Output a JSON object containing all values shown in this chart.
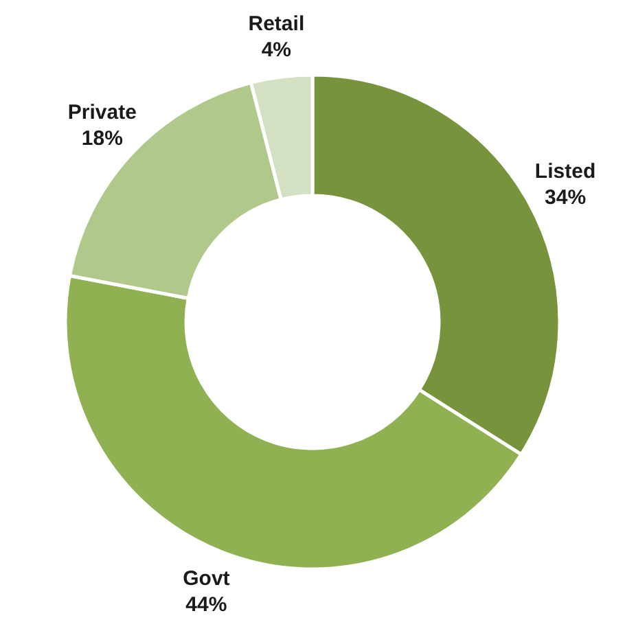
{
  "chart_data": {
    "type": "donut",
    "categories": [
      "Listed",
      "Govt",
      "Private",
      "Retail"
    ],
    "values": [
      34,
      44,
      18,
      4
    ],
    "value_labels": [
      "34%",
      "44%",
      "18%",
      "4%"
    ],
    "colors": [
      "#77933c",
      "#8fb152",
      "#b0c88a",
      "#d3e0c2"
    ]
  }
}
